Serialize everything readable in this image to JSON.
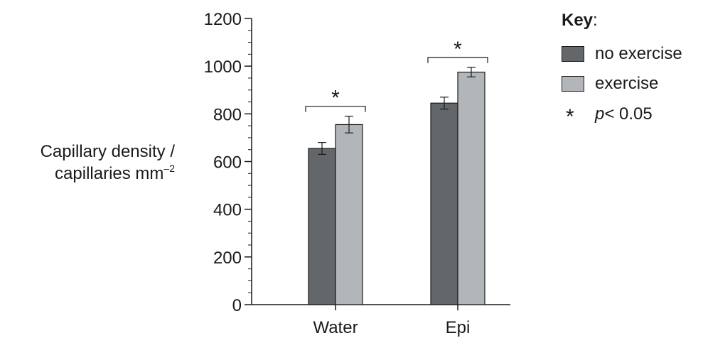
{
  "chart_data": {
    "type": "bar",
    "categories": [
      "Water",
      "Epi"
    ],
    "series": [
      {
        "name": "no exercise",
        "values": [
          655,
          845
        ],
        "errors": [
          25,
          25
        ],
        "color": "#646769"
      },
      {
        "name": "exercise",
        "values": [
          755,
          975
        ],
        "errors": [
          35,
          20
        ],
        "color": "#b2b6b8"
      }
    ],
    "ylabel_line1": "Capillary density /",
    "ylabel_line2": "capillaries mm",
    "ylabel_exponent": "–2",
    "ylim": [
      0,
      1200
    ],
    "yticks": [
      "0",
      "200",
      "400",
      "600",
      "800",
      "1000",
      "1200"
    ],
    "significance_marker": "*",
    "significant_groups": [
      "Water",
      "Epi"
    ],
    "legend": {
      "title": "Key",
      "title_suffix": ":",
      "items": [
        "no exercise",
        "exercise"
      ],
      "significance_symbol": "*",
      "significance_p": "p",
      "significance_text": "< 0.05"
    }
  }
}
